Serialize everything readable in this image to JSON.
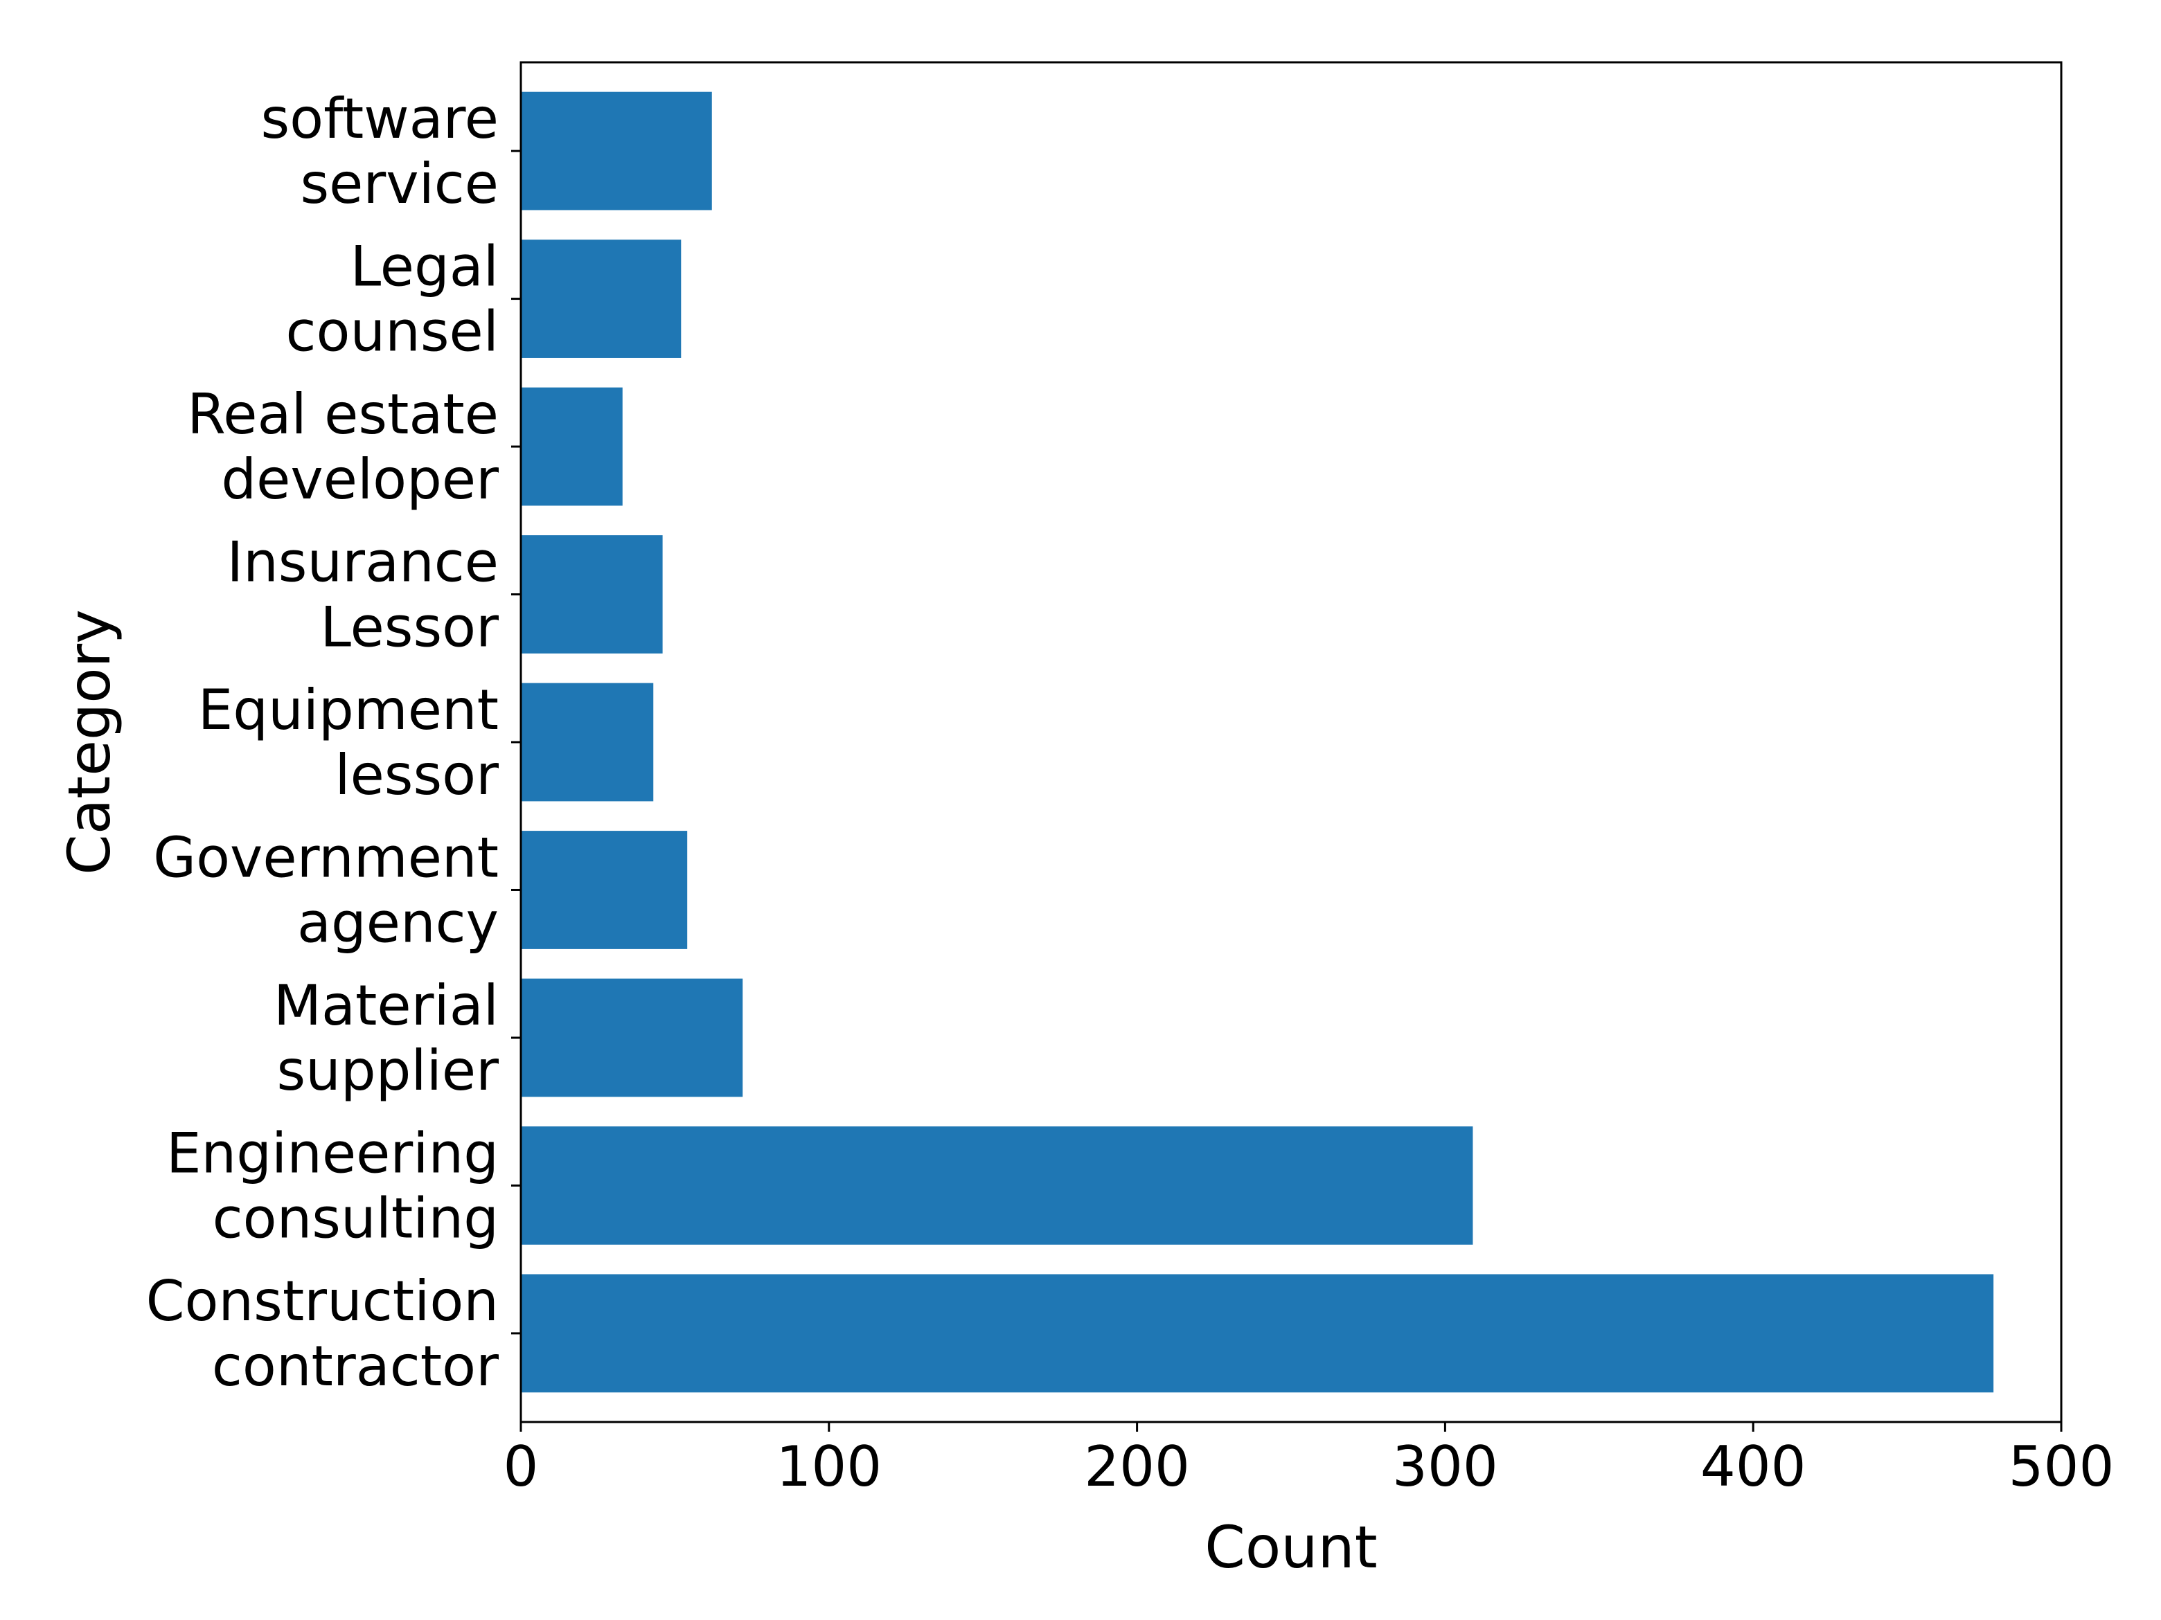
{
  "chart_data": {
    "type": "bar",
    "orientation": "horizontal",
    "title": "",
    "xlabel": "Count",
    "ylabel": "Category",
    "xlim": [
      0,
      500
    ],
    "xticks": [
      0,
      100,
      200,
      300,
      400,
      500
    ],
    "grid": false,
    "legend": "none",
    "bar_color": "#1f77b4",
    "categories": [
      [
        "Construction",
        "contractor"
      ],
      [
        "Engineering",
        "consulting"
      ],
      [
        "Material",
        "supplier"
      ],
      [
        "Government",
        "agency"
      ],
      [
        "Equipment",
        "lessor"
      ],
      [
        "Insurance",
        "Lessor"
      ],
      [
        "Real estate",
        "developer"
      ],
      [
        "Legal",
        "counsel"
      ],
      [
        "software",
        "service"
      ]
    ],
    "values": [
      478,
      309,
      72,
      54,
      43,
      46,
      33,
      52,
      62
    ]
  }
}
